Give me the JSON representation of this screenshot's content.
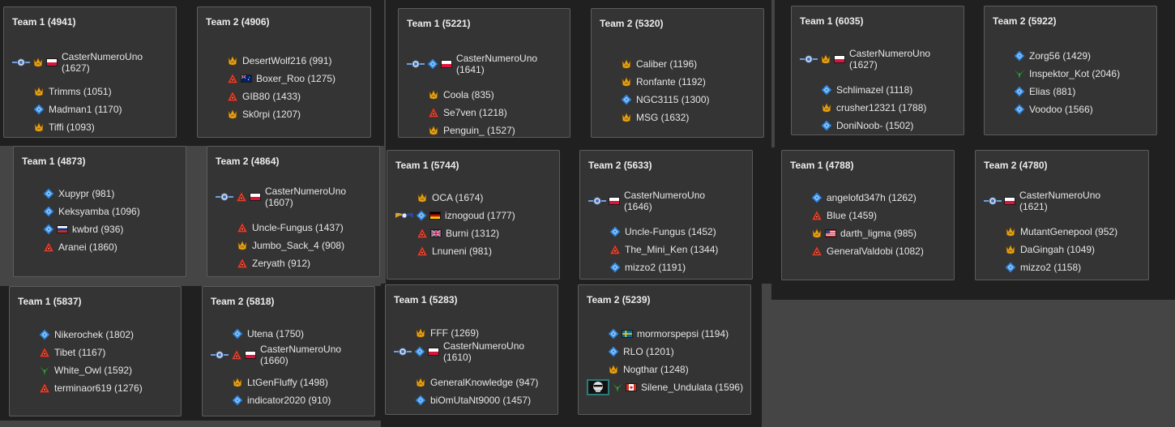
{
  "colors": {
    "background": "#454545",
    "strip": "#202020",
    "card": "#343434",
    "card_border": "#5c5c5c",
    "text": "#e6e6e6",
    "gold": "#e8a317",
    "blue": "#3c8fe0",
    "red": "#d8432f",
    "green": "#38b040"
  },
  "matches": [
    {
      "teams": [
        {
          "title": "Team 1 (4941)",
          "players": [
            {
              "name": "CasterNumeroUno",
              "rating": "(1627)",
              "icons": [
                "medal-icon",
                "gold-faction-icon",
                "flag-poland"
              ]
            },
            {
              "name": "Trimms",
              "rating": "(1051)",
              "icons": [
                "gold-faction-icon"
              ]
            },
            {
              "name": "Madman1",
              "rating": "(1170)",
              "icons": [
                "blue-faction-icon"
              ]
            },
            {
              "name": "Tiffi",
              "rating": "(1093)",
              "icons": [
                "gold-faction-icon"
              ]
            }
          ]
        },
        {
          "title": "Team 2 (4906)",
          "players": [
            {
              "name": "DesertWolf216",
              "rating": "(991)",
              "icons": [
                "gold-faction-icon"
              ]
            },
            {
              "name": "Boxer_Roo",
              "rating": "(1275)",
              "icons": [
                "red-faction-icon",
                "flag-australia"
              ]
            },
            {
              "name": "GIB80",
              "rating": "(1433)",
              "icons": [
                "red-faction-icon"
              ]
            },
            {
              "name": "Sk0rpi",
              "rating": "(1207)",
              "icons": [
                "gold-faction-icon"
              ]
            }
          ]
        }
      ]
    },
    {
      "teams": [
        {
          "title": "Team 1 (5221)",
          "players": [
            {
              "name": "CasterNumeroUno",
              "rating": "(1641)",
              "icons": [
                "medal-icon",
                "blue-faction-icon",
                "flag-poland"
              ]
            },
            {
              "name": "Coola",
              "rating": "(835)",
              "icons": [
                "gold-faction-icon"
              ]
            },
            {
              "name": "Se7ven",
              "rating": "(1218)",
              "icons": [
                "red-faction-icon"
              ]
            },
            {
              "name": "Penguin_",
              "rating": "(1527)",
              "icons": [
                "gold-faction-icon"
              ]
            }
          ]
        },
        {
          "title": "Team 2 (5320)",
          "players": [
            {
              "name": "Caliber",
              "rating": "(1196)",
              "icons": [
                "gold-faction-icon"
              ]
            },
            {
              "name": "Ronfante",
              "rating": "(1192)",
              "icons": [
                "gold-faction-icon"
              ]
            },
            {
              "name": "NGC3115",
              "rating": "(1300)",
              "icons": [
                "blue-faction-icon"
              ]
            },
            {
              "name": "MSG",
              "rating": "(1632)",
              "icons": [
                "gold-faction-icon"
              ]
            }
          ]
        }
      ]
    },
    {
      "teams": [
        {
          "title": "Team 1 (6035)",
          "players": [
            {
              "name": "CasterNumeroUno",
              "rating": "(1627)",
              "icons": [
                "medal-icon",
                "gold-faction-icon",
                "flag-poland"
              ]
            },
            {
              "name": "Schlimazel",
              "rating": "(1118)",
              "icons": [
                "blue-faction-icon"
              ]
            },
            {
              "name": "crusher12321",
              "rating": "(1788)",
              "icons": [
                "gold-faction-icon"
              ]
            },
            {
              "name": "DoniNoob-",
              "rating": "(1502)",
              "icons": [
                "blue-faction-icon"
              ]
            }
          ]
        },
        {
          "title": "Team 2 (5922)",
          "players": [
            {
              "name": "Zorg56",
              "rating": "(1429)",
              "icons": [
                "blue-faction-icon"
              ]
            },
            {
              "name": "Inspektor_Kot",
              "rating": "(2046)",
              "icons": [
                "green-faction-icon"
              ]
            },
            {
              "name": "Elias",
              "rating": "(881)",
              "icons": [
                "blue-faction-icon"
              ]
            },
            {
              "name": "Voodoo",
              "rating": "(1566)",
              "icons": [
                "blue-faction-icon"
              ]
            }
          ]
        }
      ]
    },
    {
      "teams": [
        {
          "title": "Team 1 (4873)",
          "players": [
            {
              "name": "Xupypr",
              "rating": "(981)",
              "icons": [
                "blue-faction-icon"
              ]
            },
            {
              "name": "Keksyamba",
              "rating": "(1096)",
              "icons": [
                "blue-faction-icon"
              ]
            },
            {
              "name": "kwbrd",
              "rating": "(936)",
              "icons": [
                "blue-faction-icon",
                "flag-russia"
              ]
            },
            {
              "name": "Aranei",
              "rating": "(1860)",
              "icons": [
                "red-faction-icon"
              ]
            }
          ]
        },
        {
          "title": "Team 2 (4864)",
          "players": [
            {
              "name": "CasterNumeroUno",
              "rating": "(1607)",
              "icons": [
                "medal-icon",
                "red-faction-icon",
                "flag-poland"
              ]
            },
            {
              "name": "Uncle-Fungus",
              "rating": "(1437)",
              "icons": [
                "red-faction-icon"
              ]
            },
            {
              "name": "Jumbo_Sack_4",
              "rating": "(908)",
              "icons": [
                "gold-faction-icon"
              ]
            },
            {
              "name": "Zeryath",
              "rating": "(912)",
              "icons": [
                "red-faction-icon"
              ]
            }
          ]
        }
      ]
    },
    {
      "teams": [
        {
          "title": "Team 1 (5744)",
          "players": [
            {
              "name": "OCA",
              "rating": "(1674)",
              "icons": [
                "gold-faction-icon"
              ]
            },
            {
              "name": "iznogoud",
              "rating": "(1777)",
              "icons": [
                "wing-medal-icon",
                "blue-faction-icon",
                "flag-germany"
              ]
            },
            {
              "name": "Burni",
              "rating": "(1312)",
              "icons": [
                "red-faction-icon",
                "flag-uk"
              ]
            },
            {
              "name": "Lnuneni",
              "rating": "(981)",
              "icons": [
                "red-faction-icon"
              ]
            }
          ]
        },
        {
          "title": "Team 2 (5633)",
          "players": [
            {
              "name": "CasterNumeroUno",
              "rating": "(1646)",
              "icons": [
                "medal-icon",
                "flag-poland"
              ]
            },
            {
              "name": "Uncle-Fungus",
              "rating": "(1452)",
              "icons": [
                "blue-faction-icon"
              ]
            },
            {
              "name": "The_Mini_Ken",
              "rating": "(1344)",
              "icons": [
                "red-faction-icon"
              ]
            },
            {
              "name": "mizzo2",
              "rating": "(1191)",
              "icons": [
                "blue-faction-icon"
              ]
            }
          ]
        }
      ]
    },
    {
      "teams": [
        {
          "title": "Team 1 (4788)",
          "players": [
            {
              "name": "angelofd347h",
              "rating": "(1262)",
              "icons": [
                "blue-faction-icon"
              ]
            },
            {
              "name": "Blue",
              "rating": "(1459)",
              "icons": [
                "red-faction-icon"
              ]
            },
            {
              "name": "darth_ligma",
              "rating": "(985)",
              "icons": [
                "gold-faction-icon",
                "flag-usa"
              ]
            },
            {
              "name": "GeneralValdobi",
              "rating": "(1082)",
              "icons": [
                "red-faction-icon"
              ]
            }
          ]
        },
        {
          "title": "Team 2 (4780)",
          "players": [
            {
              "name": "CasterNumeroUno",
              "rating": "(1621)",
              "icons": [
                "medal-icon",
                "flag-poland"
              ]
            },
            {
              "name": "MutantGenepool",
              "rating": "(952)",
              "icons": [
                "gold-faction-icon"
              ]
            },
            {
              "name": "DaGingah",
              "rating": "(1049)",
              "icons": [
                "gold-faction-icon"
              ]
            },
            {
              "name": "mizzo2",
              "rating": "(1158)",
              "icons": [
                "blue-faction-icon"
              ]
            }
          ]
        }
      ]
    },
    {
      "teams": [
        {
          "title": "Team 1 (5837)",
          "players": [
            {
              "name": "Nikerochek",
              "rating": "(1802)",
              "icons": [
                "blue-faction-icon"
              ]
            },
            {
              "name": "Tibet",
              "rating": "(1167)",
              "icons": [
                "red-faction-icon"
              ]
            },
            {
              "name": "White_Owl",
              "rating": "(1592)",
              "icons": [
                "green-faction-icon"
              ]
            },
            {
              "name": "terminaor619",
              "rating": "(1276)",
              "icons": [
                "red-faction-icon"
              ]
            }
          ]
        },
        {
          "title": "Team 2 (5818)",
          "players": [
            {
              "name": "Utena",
              "rating": "(1750)",
              "icons": [
                "blue-faction-icon"
              ]
            },
            {
              "name": "CasterNumeroUno",
              "rating": "(1660)",
              "icons": [
                "medal-icon",
                "red-faction-icon",
                "flag-poland"
              ]
            },
            {
              "name": "LtGenFluffy",
              "rating": "(1498)",
              "icons": [
                "gold-faction-icon"
              ]
            },
            {
              "name": "indicator2020",
              "rating": "(910)",
              "icons": [
                "blue-faction-icon"
              ]
            }
          ]
        }
      ]
    },
    {
      "teams": [
        {
          "title": "Team 1 (5283)",
          "players": [
            {
              "name": "FFF",
              "rating": "(1269)",
              "icons": [
                "gold-faction-icon"
              ]
            },
            {
              "name": "CasterNumeroUno",
              "rating": "(1610)",
              "icons": [
                "medal-icon",
                "blue-faction-icon",
                "flag-poland"
              ]
            },
            {
              "name": "GeneralKnowledge",
              "rating": "(947)",
              "icons": [
                "gold-faction-icon"
              ]
            },
            {
              "name": "biOmUtaNt9000",
              "rating": "(1457)",
              "icons": [
                "blue-faction-icon"
              ]
            }
          ]
        },
        {
          "title": "Team 2 (5239)",
          "players": [
            {
              "name": "mormorspepsi",
              "rating": "(1194)",
              "icons": [
                "blue-faction-icon",
                "flag-sweden"
              ]
            },
            {
              "name": "RLO",
              "rating": "(1201)",
              "icons": [
                "blue-faction-icon"
              ]
            },
            {
              "name": "Nogthar",
              "rating": "(1248)",
              "icons": [
                "gold-faction-icon"
              ]
            },
            {
              "name": "Silene_Undulata",
              "rating": "(1596)",
              "icons": [
                "avatar-icon",
                "green-faction-icon",
                "flag-canada"
              ]
            }
          ]
        }
      ]
    }
  ]
}
